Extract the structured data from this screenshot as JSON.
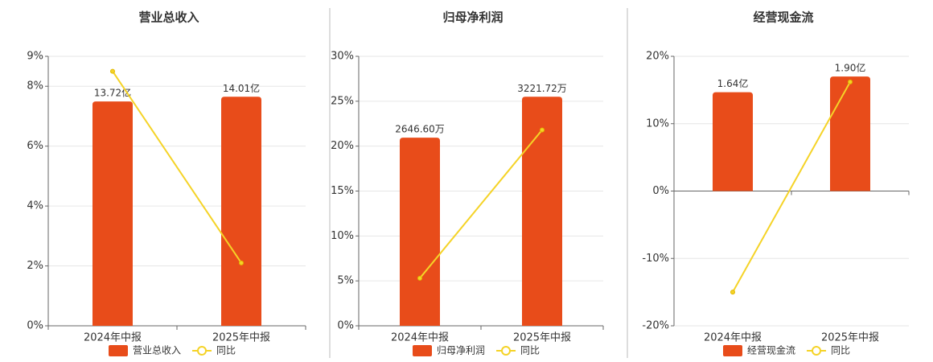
{
  "chart_data": [
    {
      "type": "bar",
      "title": "营业总收入",
      "categories": [
        "2024年中报",
        "2025年中报"
      ],
      "series": [
        {
          "name": "营业总收入",
          "color": "#e84c1a",
          "values": [
            13.72,
            14.01
          ],
          "value_labels": [
            "13.72亿",
            "14.01亿"
          ]
        },
        {
          "name": "同比",
          "type": "line",
          "color": "#f5d327",
          "values": [
            8.5,
            2.1
          ]
        }
      ],
      "ylim": [
        0,
        9
      ],
      "yticks": [
        {
          "value": 0,
          "label": "0%"
        },
        {
          "value": 2,
          "label": "2%"
        },
        {
          "value": 4,
          "label": "4%"
        },
        {
          "value": 6,
          "label": "6%"
        },
        {
          "value": 8,
          "label": "8%"
        },
        {
          "value": 9,
          "label": "9%"
        }
      ],
      "grid": true
    },
    {
      "type": "bar",
      "title": "归母净利润",
      "categories": [
        "2024年中报",
        "2025年中报"
      ],
      "series": [
        {
          "name": "归母净利润",
          "color": "#e84c1a",
          "values": [
            2646.6,
            3221.72
          ],
          "value_labels": [
            "2646.60万",
            "3221.72万"
          ]
        },
        {
          "name": "同比",
          "type": "line",
          "color": "#f5d327",
          "values": [
            5.3,
            21.8
          ]
        }
      ],
      "ylim": [
        0,
        30
      ],
      "yticks": [
        {
          "value": 0,
          "label": "0%"
        },
        {
          "value": 5,
          "label": "5%"
        },
        {
          "value": 10,
          "label": "10%"
        },
        {
          "value": 15,
          "label": "15%"
        },
        {
          "value": 20,
          "label": "20%"
        },
        {
          "value": 25,
          "label": "25%"
        },
        {
          "value": 30,
          "label": "30%"
        }
      ],
      "grid": true
    },
    {
      "type": "bar",
      "title": "经营现金流",
      "categories": [
        "2024年中报",
        "2025年中报"
      ],
      "series": [
        {
          "name": "经营现金流",
          "color": "#e84c1a",
          "values": [
            1.64,
            1.9
          ],
          "value_labels": [
            "1.64亿",
            "1.90亿"
          ]
        },
        {
          "name": "同比",
          "type": "line",
          "color": "#f5d327",
          "values": [
            -15,
            16.2
          ]
        }
      ],
      "ylim": [
        -20,
        20
      ],
      "yticks": [
        {
          "value": -20,
          "label": "-20%"
        },
        {
          "value": -10,
          "label": "-10%"
        },
        {
          "value": 0,
          "label": "0%"
        },
        {
          "value": 10,
          "label": "10%"
        },
        {
          "value": 20,
          "label": "20%"
        }
      ],
      "grid": true
    }
  ]
}
